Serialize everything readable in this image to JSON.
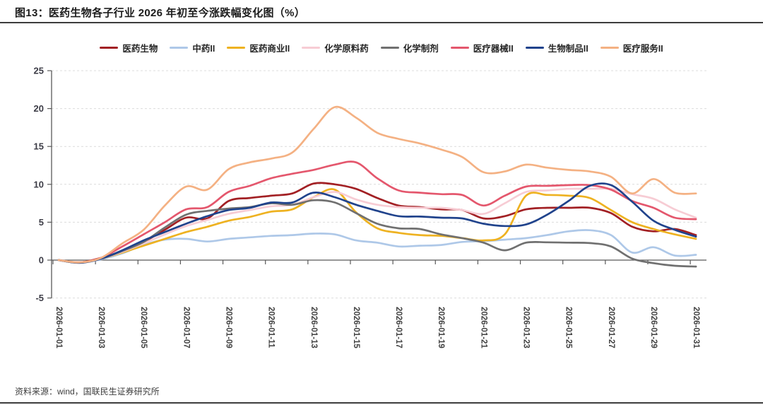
{
  "page": {
    "title": "图13：医药生物各子行业 2026 年初至今涨跌幅变化图（%）",
    "source_note": "资料来源：wind，国联民生证券研究所"
  },
  "chart_data": {
    "type": "line",
    "title": "图13：医药生物各子行业 2026 年初至今涨跌幅变化图（%）",
    "xlabel": "",
    "ylabel": "",
    "ylim": [
      -5,
      25
    ],
    "yticks": [
      25,
      20,
      15,
      10,
      5,
      0,
      -5
    ],
    "grid": "horizontal-dashed",
    "legend_position": "top",
    "x_tick_step": 2,
    "x": [
      "2026-01-01",
      "2026-01-02",
      "2026-01-03",
      "2026-01-04",
      "2026-01-05",
      "2026-01-06",
      "2026-01-07",
      "2026-01-08",
      "2026-01-09",
      "2026-01-10",
      "2026-01-11",
      "2026-01-12",
      "2026-01-13",
      "2026-01-14",
      "2026-01-15",
      "2026-01-16",
      "2026-01-17",
      "2026-01-18",
      "2026-01-19",
      "2026-01-20",
      "2026-01-21",
      "2026-01-22",
      "2026-01-23",
      "2026-01-24",
      "2026-01-25",
      "2026-01-26",
      "2026-01-27",
      "2026-01-28",
      "2026-01-29",
      "2026-01-30",
      "2026-01-31"
    ],
    "series": [
      {
        "name": "医药生物",
        "color": "#A22024",
        "values": [
          0,
          -0.3,
          0.3,
          1.2,
          2.4,
          4.0,
          5.6,
          5.5,
          7.8,
          8.2,
          8.5,
          8.8,
          10.1,
          10.0,
          9.4,
          8.2,
          7.2,
          7.0,
          6.7,
          6.6,
          5.5,
          5.8,
          6.7,
          6.9,
          6.9,
          6.9,
          6.2,
          4.4,
          3.8,
          4.1,
          3.3
        ]
      },
      {
        "name": "中药II",
        "color": "#AEC8E8",
        "values": [
          0,
          -0.35,
          0.1,
          0.9,
          2.0,
          2.7,
          2.8,
          2.45,
          2.8,
          3.0,
          3.2,
          3.3,
          3.5,
          3.4,
          2.6,
          2.3,
          1.8,
          1.9,
          2.0,
          2.4,
          2.5,
          2.7,
          2.9,
          3.3,
          3.8,
          3.95,
          3.3,
          1.0,
          1.7,
          0.6,
          0.7
        ]
      },
      {
        "name": "医药商业II",
        "color": "#EEB221",
        "values": [
          0,
          -0.3,
          0.2,
          1.0,
          1.9,
          2.8,
          3.7,
          4.4,
          5.2,
          5.7,
          6.4,
          6.7,
          8.3,
          9.3,
          6.3,
          4.2,
          3.6,
          3.3,
          3.2,
          2.9,
          2.6,
          3.4,
          8.5,
          8.6,
          8.5,
          8.2,
          6.6,
          5.0,
          4.1,
          3.4,
          2.8
        ]
      },
      {
        "name": "化学原料药",
        "color": "#F7CCD4",
        "values": [
          0,
          -0.3,
          0.2,
          1.1,
          2.2,
          3.4,
          4.5,
          5.3,
          6.1,
          6.6,
          7.1,
          7.3,
          8.3,
          9.0,
          8.0,
          7.3,
          7.0,
          6.9,
          6.9,
          6.6,
          6.1,
          7.5,
          9.0,
          9.2,
          9.4,
          9.4,
          9.4,
          8.7,
          8.1,
          6.7,
          5.6
        ]
      },
      {
        "name": "化学制剂",
        "color": "#707070",
        "values": [
          0,
          -0.35,
          0.2,
          1.2,
          2.4,
          4.3,
          6.0,
          6.5,
          6.8,
          7.0,
          7.5,
          7.3,
          7.9,
          7.6,
          6.2,
          4.8,
          4.2,
          4.1,
          3.4,
          2.9,
          2.3,
          1.3,
          2.3,
          2.35,
          2.3,
          2.25,
          1.8,
          0.2,
          -0.4,
          -0.75,
          -0.85
        ]
      },
      {
        "name": "医疗器械II",
        "color": "#E4576D",
        "values": [
          0,
          -0.3,
          0.3,
          1.8,
          3.4,
          5.0,
          6.7,
          7.0,
          9.0,
          9.8,
          10.8,
          11.4,
          11.9,
          12.6,
          12.9,
          10.8,
          9.2,
          8.9,
          8.7,
          8.6,
          7.2,
          8.5,
          9.7,
          9.8,
          9.9,
          9.9,
          9.3,
          7.8,
          6.9,
          5.6,
          5.4
        ]
      },
      {
        "name": "生物制品II",
        "color": "#20438C",
        "values": [
          0,
          -0.35,
          0.2,
          1.3,
          2.6,
          3.7,
          4.8,
          5.8,
          6.6,
          6.9,
          7.6,
          7.6,
          8.9,
          8.3,
          7.3,
          6.5,
          5.8,
          5.75,
          5.6,
          5.5,
          4.8,
          4.5,
          4.7,
          6.0,
          7.8,
          9.8,
          9.9,
          7.7,
          5.2,
          4.0,
          3.1
        ]
      },
      {
        "name": "医疗服务II",
        "color": "#F4B183",
        "values": [
          0,
          -0.3,
          0.3,
          2.2,
          4.0,
          7.2,
          9.7,
          9.3,
          12.0,
          12.9,
          13.4,
          14.2,
          17.3,
          20.2,
          18.8,
          16.8,
          16.0,
          15.4,
          14.6,
          13.6,
          11.6,
          11.7,
          12.6,
          12.2,
          11.9,
          11.7,
          11.0,
          8.8,
          10.7,
          8.9,
          8.8
        ]
      }
    ],
    "source_note": "资料来源：wind，国联民生证券研究所"
  }
}
